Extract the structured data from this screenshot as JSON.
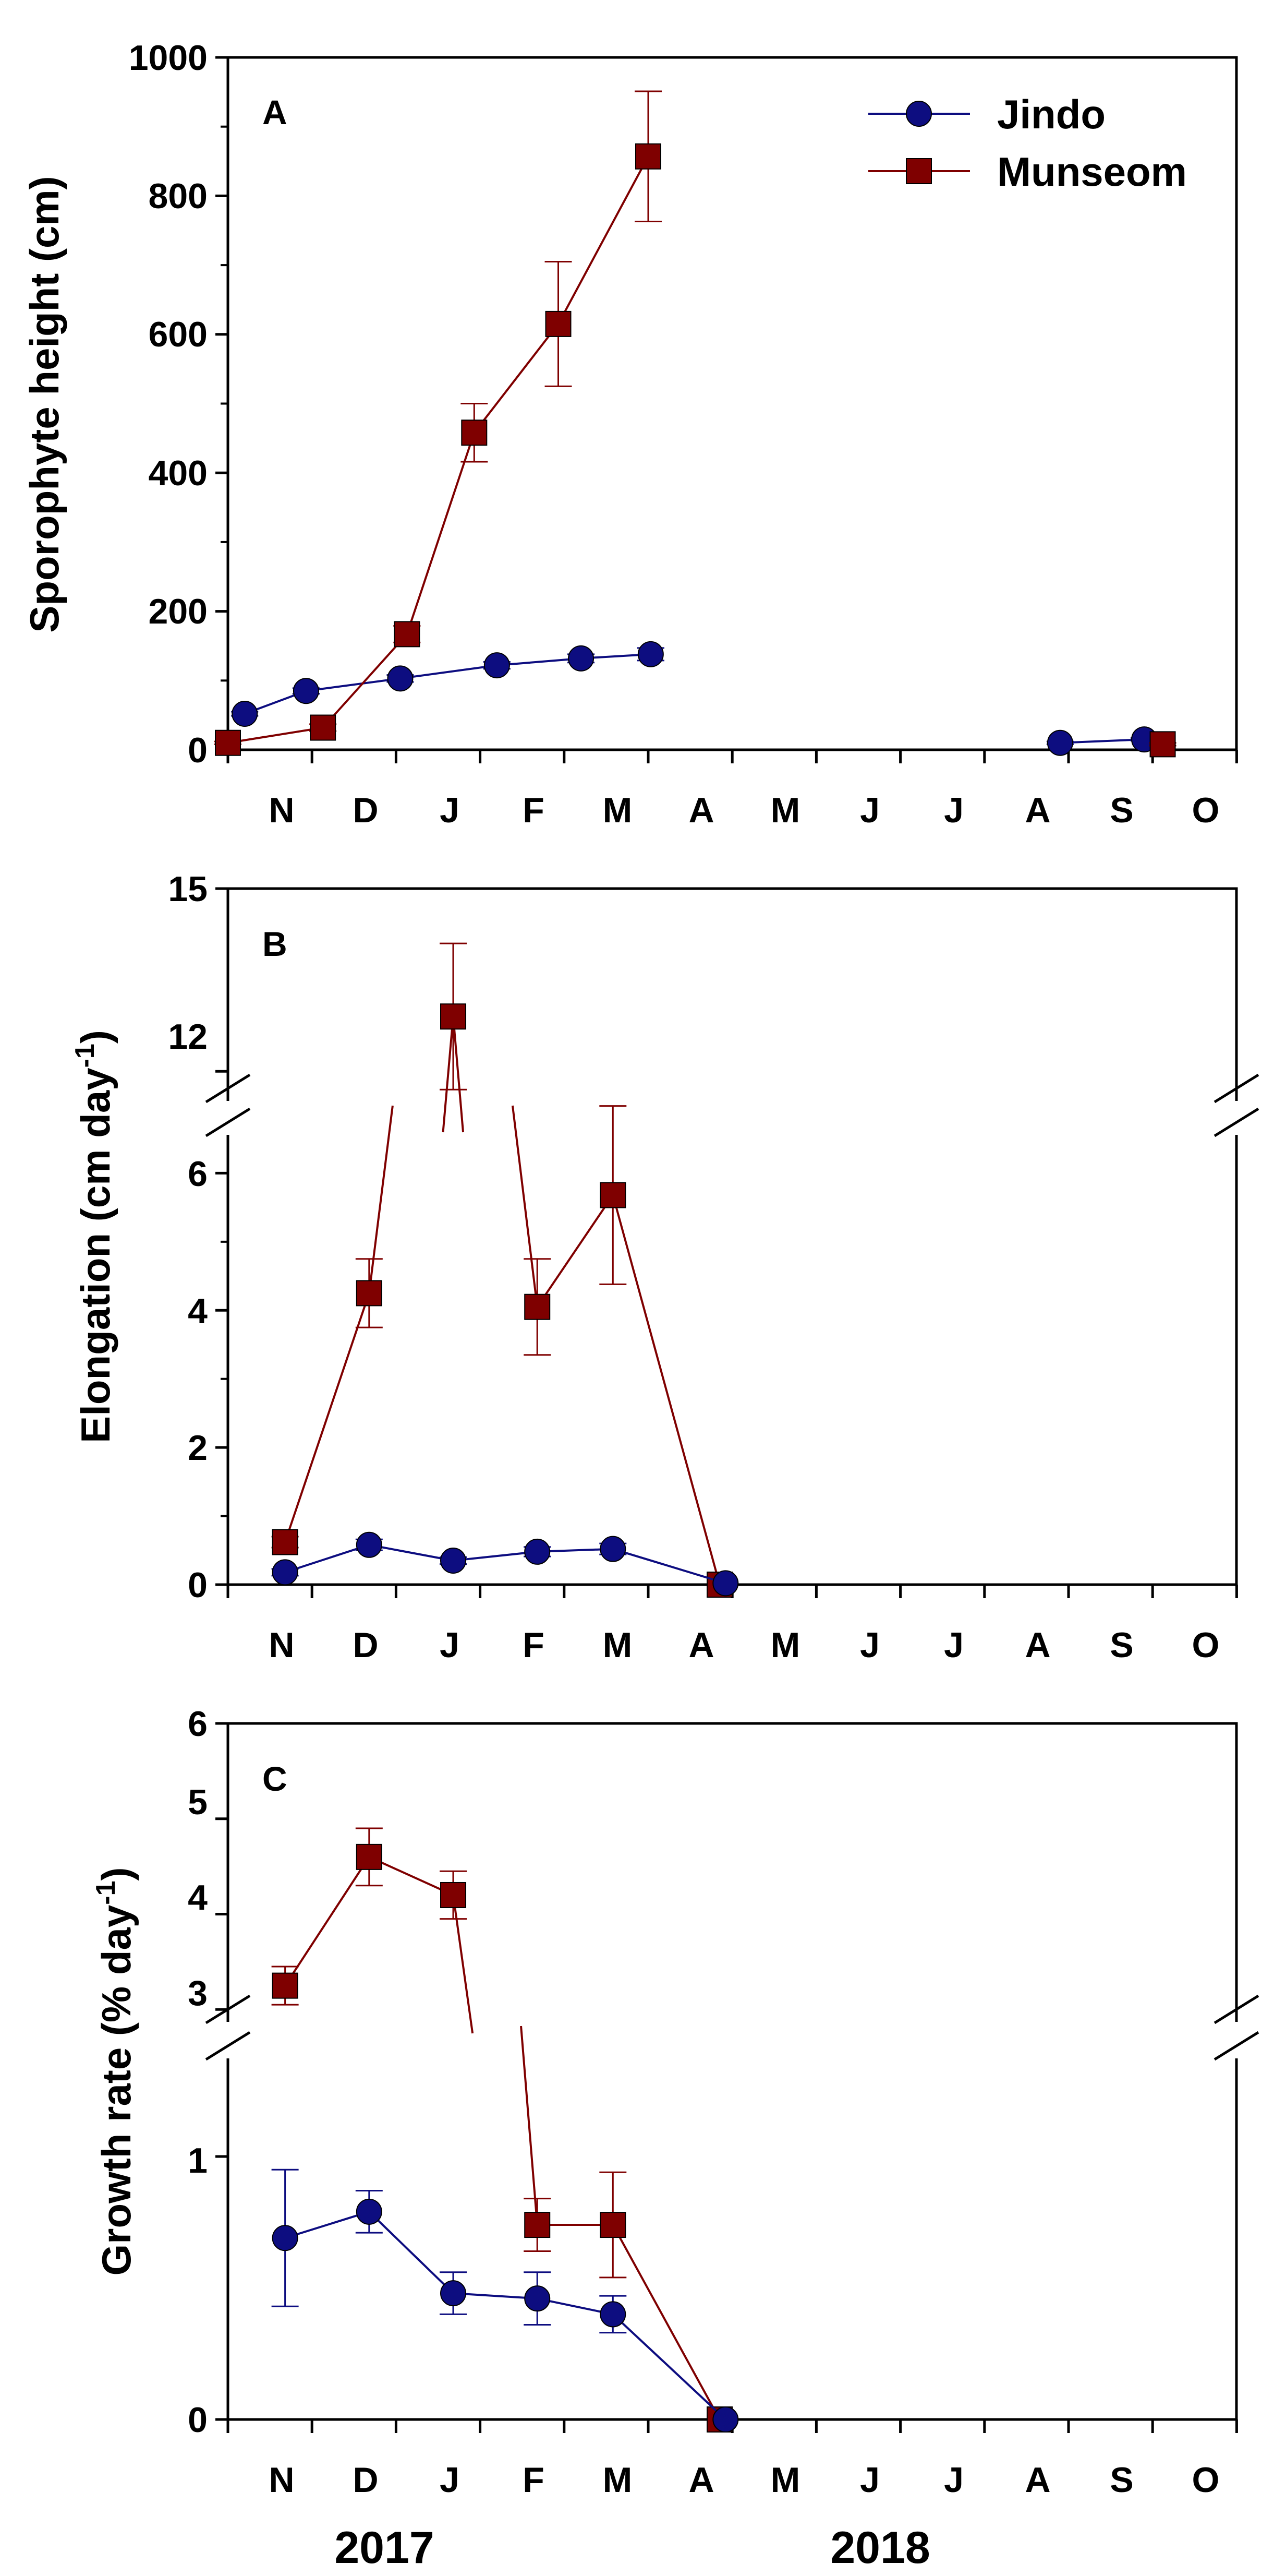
{
  "figure": {
    "colors": {
      "jindo": "#0d0d80",
      "munseom": "#7f0000",
      "axis": "#000000"
    },
    "months": [
      "N",
      "D",
      "J",
      "F",
      "M",
      "A",
      "M",
      "J",
      "J",
      "A",
      "S",
      "O"
    ],
    "years": [
      "2017",
      "2018"
    ]
  },
  "chart_data": [
    {
      "type": "line",
      "panel_label": "A",
      "ylabel": "Sporophyte height (cm)",
      "xlabel": "",
      "ylim": [
        0,
        1000
      ],
      "yticks": [
        "0",
        "200",
        "400",
        "600",
        "800",
        "1000"
      ],
      "x_units": "months since start of November 2017",
      "legend": {
        "position": "top-right",
        "entries": [
          "Jindo",
          "Munseom"
        ]
      },
      "series": [
        {
          "name": "Jindo",
          "marker": "circle",
          "x": [
            0.2,
            0.93,
            2.05,
            3.2,
            4.2,
            5.03,
            9.9,
            10.9
          ],
          "y": [
            52,
            85,
            103,
            122,
            132,
            138,
            10,
            15
          ],
          "err": [
            3,
            4,
            5,
            5,
            6,
            9,
            2,
            2
          ]
        },
        {
          "name": "Munseom",
          "marker": "square",
          "x": [
            0.0,
            1.13,
            2.13,
            2.93,
            3.93,
            5.0,
            11.12
          ],
          "y": [
            10,
            32,
            167,
            458,
            615,
            857,
            8
          ],
          "err": [
            2,
            5,
            12,
            42,
            90,
            94,
            2
          ]
        }
      ]
    },
    {
      "type": "line",
      "panel_label": "B",
      "ylabel": "Elongation (cm day",
      "ylabel_sup": "-1",
      "ylabel_end": ")",
      "xlabel": "",
      "ylim_lower": [
        0,
        7
      ],
      "ylim_upper": [
        11,
        15
      ],
      "axis_break": true,
      "yticks": [
        "0",
        "2",
        "4",
        "6",
        "12",
        "15"
      ],
      "x_units": "months since start of November 2017",
      "series": [
        {
          "name": "Jindo",
          "marker": "circle",
          "x": [
            0.68,
            1.68,
            2.68,
            3.68,
            4.58,
            5.92
          ],
          "y": [
            0.18,
            0.58,
            0.35,
            0.48,
            0.52,
            0.02
          ],
          "err": [
            0.05,
            0.08,
            0.05,
            0.07,
            0.08,
            0.01
          ]
        },
        {
          "name": "Munseom",
          "marker": "square",
          "x": [
            0.68,
            1.68,
            2.68,
            3.68,
            4.58,
            5.85
          ],
          "y": [
            0.62,
            4.25,
            12.9,
            4.05,
            5.68,
            0.0
          ],
          "err": [
            0.08,
            0.5,
            1.2,
            0.7,
            1.3,
            0.02
          ]
        }
      ]
    },
    {
      "type": "line",
      "panel_label": "C",
      "ylabel": "Growth rate (% day",
      "ylabel_sup": "-1",
      "ylabel_end": ")",
      "xlabel": "",
      "ylim_lower": [
        0,
        1.5
      ],
      "ylim_upper": [
        2.75,
        6
      ],
      "axis_break": true,
      "yticks": [
        "0",
        "1",
        "3",
        "4",
        "5",
        "6"
      ],
      "x_units": "months since start of November 2017",
      "series": [
        {
          "name": "Jindo",
          "marker": "circle",
          "x": [
            0.68,
            1.68,
            2.68,
            3.68,
            4.58,
            5.92
          ],
          "y": [
            0.69,
            0.79,
            0.48,
            0.46,
            0.4,
            0.0
          ],
          "err": [
            0.26,
            0.08,
            0.08,
            0.1,
            0.07,
            0.01
          ]
        },
        {
          "name": "Munseom",
          "marker": "square",
          "x": [
            0.68,
            1.68,
            2.68,
            3.68,
            4.58,
            5.85
          ],
          "y": [
            3.25,
            4.6,
            4.2,
            0.74,
            0.74,
            0.0
          ],
          "err": [
            0.2,
            0.3,
            0.25,
            0.1,
            0.2,
            0.02
          ]
        }
      ]
    }
  ]
}
